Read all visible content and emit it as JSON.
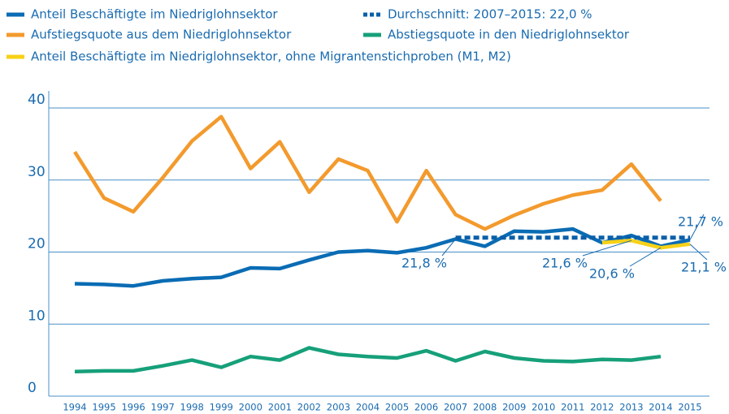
{
  "chart_data": {
    "type": "line",
    "categories": [
      "1994",
      "1995",
      "1996",
      "1997",
      "1998",
      "1999",
      "2000",
      "2001",
      "2002",
      "2003",
      "2004",
      "2005",
      "2006",
      "2007",
      "2008",
      "2009",
      "2010",
      "2011",
      "2012",
      "2013",
      "2014",
      "2015"
    ],
    "ylim": [
      0,
      40
    ],
    "yticks": [
      0,
      10,
      20,
      30,
      40
    ],
    "grid": true,
    "series": [
      {
        "name": "Anteil Beschäftigte im Niedriglohnsektor",
        "color": "#0a6cb4",
        "values": [
          15.6,
          15.5,
          15.3,
          16.0,
          16.3,
          16.5,
          17.8,
          17.7,
          18.9,
          20.0,
          20.2,
          19.9,
          20.6,
          21.8,
          20.8,
          22.9,
          22.8,
          23.2,
          21.3,
          22.3,
          20.8,
          21.7
        ],
        "value_labels": [
          null,
          null,
          null,
          null,
          null,
          null,
          null,
          null,
          null,
          null,
          null,
          null,
          null,
          "21,8 %",
          null,
          null,
          null,
          null,
          null,
          null,
          null,
          "21,7 %"
        ]
      },
      {
        "name": "Durchschnitt: 2007–2015: 22,0 %",
        "color": "#0a5fa8",
        "line_style": "dashed",
        "values": [
          null,
          null,
          null,
          null,
          null,
          null,
          null,
          null,
          null,
          null,
          null,
          null,
          null,
          22.0,
          22.0,
          22.0,
          22.0,
          22.0,
          22.0,
          22.0,
          22.0,
          22.0
        ]
      },
      {
        "name": "Aufstiegsquote aus dem Niedriglohnsektor",
        "color": "#f39a2d",
        "values": [
          33.9,
          27.5,
          25.6,
          30.3,
          35.4,
          38.8,
          31.6,
          35.3,
          28.3,
          32.9,
          31.3,
          24.2,
          31.3,
          25.2,
          23.2,
          25.1,
          26.7,
          27.9,
          28.6,
          32.2,
          27.1,
          null
        ]
      },
      {
        "name": "Abstiegsquote in den Niedriglohnsektor",
        "color": "#16a07a",
        "values": [
          3.4,
          3.5,
          3.5,
          4.2,
          5.0,
          4.0,
          5.5,
          5.0,
          6.7,
          5.8,
          5.5,
          5.3,
          6.3,
          4.9,
          6.2,
          5.3,
          4.9,
          4.8,
          5.1,
          5.0,
          5.5,
          null
        ]
      },
      {
        "name": "Anteil Beschäftigte im Niedriglohnsektor, ohne Migrantenstichproben (M1, M2)",
        "color": "#f7d117",
        "values": [
          null,
          null,
          null,
          null,
          null,
          null,
          null,
          null,
          null,
          null,
          null,
          null,
          null,
          null,
          null,
          null,
          null,
          null,
          21.3,
          21.6,
          20.6,
          21.1
        ],
        "value_labels": [
          null,
          null,
          null,
          null,
          null,
          null,
          null,
          null,
          null,
          null,
          null,
          null,
          null,
          null,
          null,
          null,
          null,
          null,
          null,
          "21,6 %",
          "20,6 %",
          "21,1 %"
        ]
      }
    ]
  }
}
